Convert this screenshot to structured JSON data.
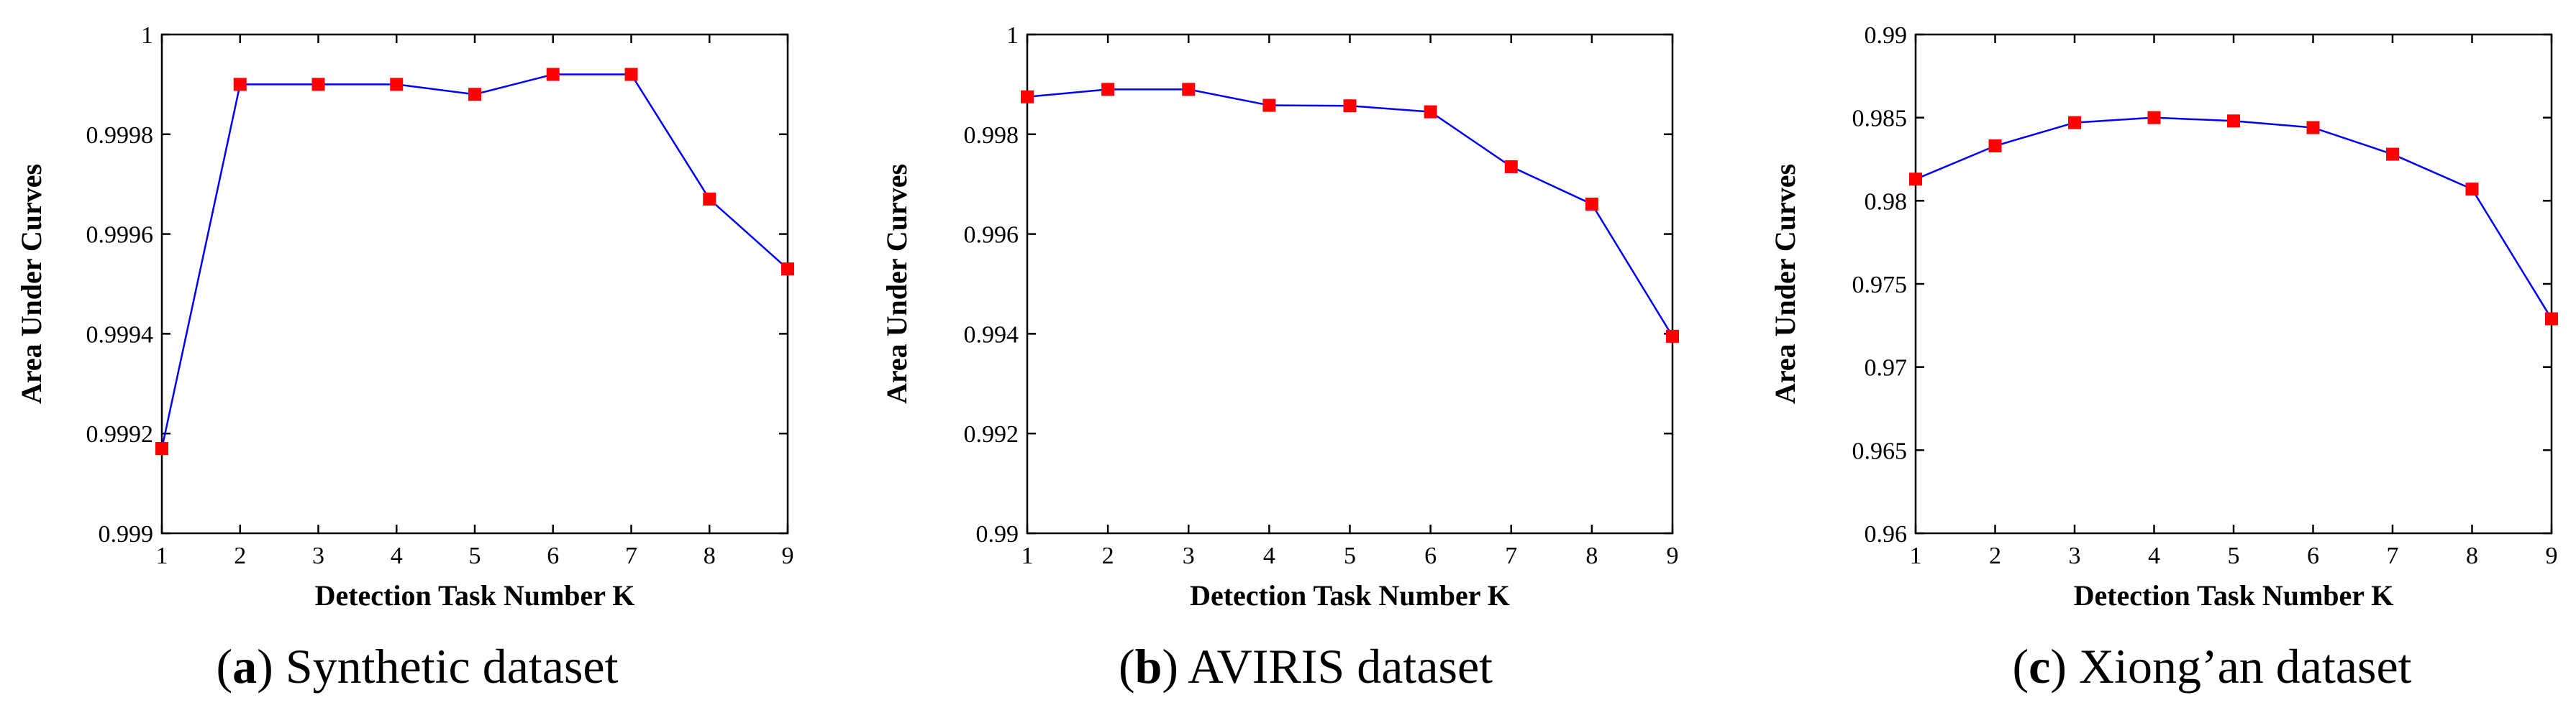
{
  "chart_data": [
    {
      "type": "line",
      "caption_letter": "a",
      "caption_text": "Synthetic dataset",
      "xlabel": "Detection Task Number K",
      "ylabel": "Area Under Curves",
      "x": [
        1,
        2,
        3,
        4,
        5,
        6,
        7,
        8,
        9
      ],
      "values": [
        0.99917,
        0.9999,
        0.9999,
        0.9999,
        0.99988,
        0.99992,
        0.99992,
        0.99967,
        0.99953
      ],
      "xlim": [
        1,
        9
      ],
      "ylim": [
        0.999,
        1.0
      ],
      "xticks": [
        "1",
        "2",
        "3",
        "4",
        "5",
        "6",
        "7",
        "8",
        "9"
      ],
      "yticks": [
        "0.999",
        "0.9992",
        "0.9994",
        "0.9996",
        "0.9998",
        "1"
      ],
      "line_color": "#0000ff",
      "marker_color": "#ff0000",
      "grid": false
    },
    {
      "type": "line",
      "caption_letter": "b",
      "caption_text": "AVIRIS dataset",
      "xlabel": "Detection Task Number K",
      "ylabel": "Area Under Curves",
      "x": [
        1,
        2,
        3,
        4,
        5,
        6,
        7,
        8,
        9
      ],
      "values": [
        0.99875,
        0.9989,
        0.9989,
        0.99858,
        0.99857,
        0.99845,
        0.99735,
        0.9966,
        0.99395
      ],
      "xlim": [
        1,
        9
      ],
      "ylim": [
        0.99,
        1.0
      ],
      "xticks": [
        "1",
        "2",
        "3",
        "4",
        "5",
        "6",
        "7",
        "8",
        "9"
      ],
      "yticks": [
        "0.99",
        "0.992",
        "0.994",
        "0.996",
        "0.998",
        "1"
      ],
      "line_color": "#0000ff",
      "marker_color": "#ff0000",
      "grid": false
    },
    {
      "type": "line",
      "caption_letter": "c",
      "caption_text": "Xiong’an dataset",
      "xlabel": "Detection Task Number K",
      "ylabel": "Area Under Curves",
      "x": [
        1,
        2,
        3,
        4,
        5,
        6,
        7,
        8,
        9
      ],
      "values": [
        0.9813,
        0.9833,
        0.9847,
        0.985,
        0.9848,
        0.9844,
        0.9828,
        0.9807,
        0.9729
      ],
      "xlim": [
        1,
        9
      ],
      "ylim": [
        0.96,
        0.99
      ],
      "xticks": [
        "1",
        "2",
        "3",
        "4",
        "5",
        "6",
        "7",
        "8",
        "9"
      ],
      "yticks": [
        "0.96",
        "0.965",
        "0.97",
        "0.975",
        "0.98",
        "0.985",
        "0.99"
      ],
      "line_color": "#0000ff",
      "marker_color": "#ff0000",
      "grid": false
    }
  ]
}
